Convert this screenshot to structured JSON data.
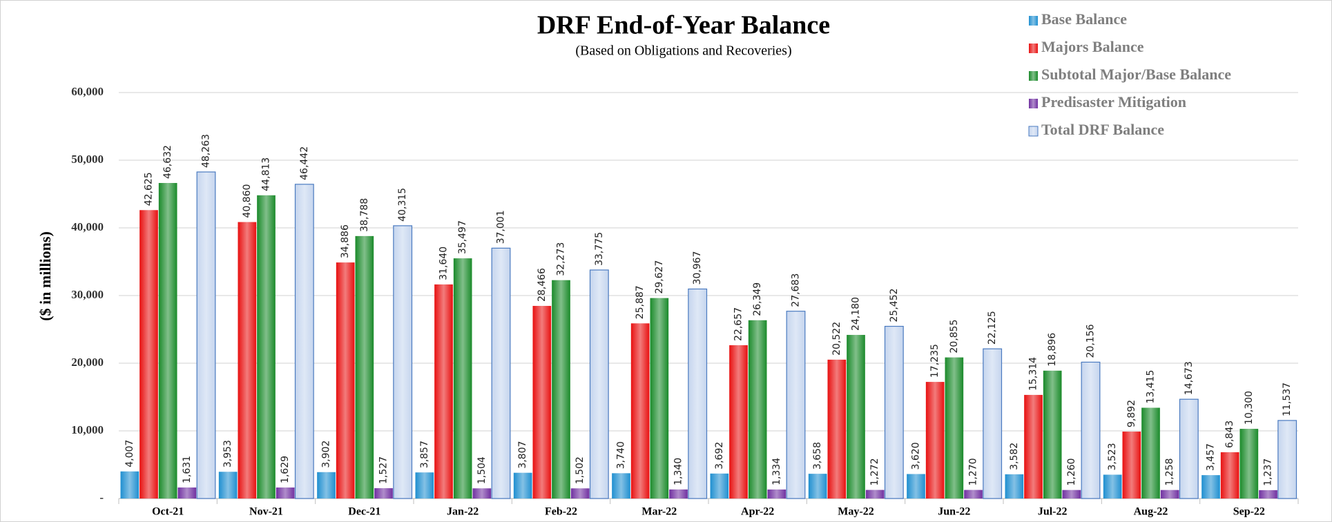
{
  "chart_data": {
    "type": "bar",
    "title": "DRF End-of-Year Balance",
    "subtitle": "(Based on Obligations and Recoveries)",
    "y_label": "($ in millions)",
    "categories": [
      "Oct-21",
      "Nov-21",
      "Dec-21",
      "Jan-22",
      "Feb-22",
      "Mar-22",
      "Apr-22",
      "May-22",
      "Jun-22",
      "Jul-22",
      "Aug-22",
      "Sep-22"
    ],
    "series": [
      {
        "name": "Base Balance",
        "color": "#1f8fd0",
        "values": [
          4007,
          3953,
          3902,
          3857,
          3807,
          3740,
          3692,
          3658,
          3620,
          3582,
          3523,
          3457
        ],
        "value_labels": [
          "4,007",
          "3,953",
          "3,902",
          "3,857",
          "3,807",
          "3,740",
          "3,692",
          "3,658",
          "3,620",
          "3,582",
          "3,523",
          "3,457"
        ]
      },
      {
        "name": "Majors Balance",
        "color": "#e81010",
        "values": [
          42625,
          40860,
          34886,
          31640,
          28466,
          25887,
          22657,
          20522,
          17235,
          15314,
          9892,
          6843
        ],
        "value_labels": [
          "42,625",
          "40,860",
          "34,886",
          "31,640",
          "28,466",
          "25,887",
          "22,657",
          "20,522",
          "17,235",
          "15,314",
          "9,892",
          "6,843"
        ]
      },
      {
        "name": "Subtotal Major/Base Balance",
        "color": "#1a8a2a",
        "values": [
          46632,
          44813,
          38788,
          35497,
          32273,
          29627,
          26349,
          24180,
          20855,
          18896,
          13415,
          10300
        ],
        "value_labels": [
          "46,632",
          "44,813",
          "38,788",
          "35,497",
          "32,273",
          "29,627",
          "26,349",
          "24,180",
          "20,855",
          "18,896",
          "13,415",
          "10,300"
        ]
      },
      {
        "name": "Predisaster Mitigation",
        "color": "#7030a0",
        "values": [
          1631,
          1629,
          1527,
          1504,
          1502,
          1340,
          1334,
          1272,
          1270,
          1260,
          1258,
          1237
        ],
        "value_labels": [
          "1,631",
          "1,629",
          "1,527",
          "1,504",
          "1,502",
          "1,340",
          "1,334",
          "1,272",
          "1,270",
          "1,260",
          "1,258",
          "1,237"
        ]
      },
      {
        "name": "Total DRF Balance",
        "color": "#c5d5ee",
        "values": [
          48263,
          46442,
          40315,
          37001,
          33775,
          30967,
          27683,
          25452,
          22125,
          20156,
          14673,
          11537
        ],
        "value_labels": [
          "48,263",
          "46,442",
          "40,315",
          "37,001",
          "33,775",
          "30,967",
          "27,683",
          "25,452",
          "22,125",
          "20,156",
          "14,673",
          "11,537"
        ]
      }
    ],
    "ylim": [
      0,
      60000
    ],
    "yticks": [
      {
        "value": 0,
        "label": "-"
      },
      {
        "value": 10000,
        "label": "10,000"
      },
      {
        "value": 20000,
        "label": "20,000"
      },
      {
        "value": 30000,
        "label": "30,000"
      },
      {
        "value": 40000,
        "label": "40,000"
      },
      {
        "value": 50000,
        "label": "50,000"
      },
      {
        "value": 60000,
        "label": "60,000"
      }
    ],
    "grid": true,
    "legend": "top-right"
  }
}
